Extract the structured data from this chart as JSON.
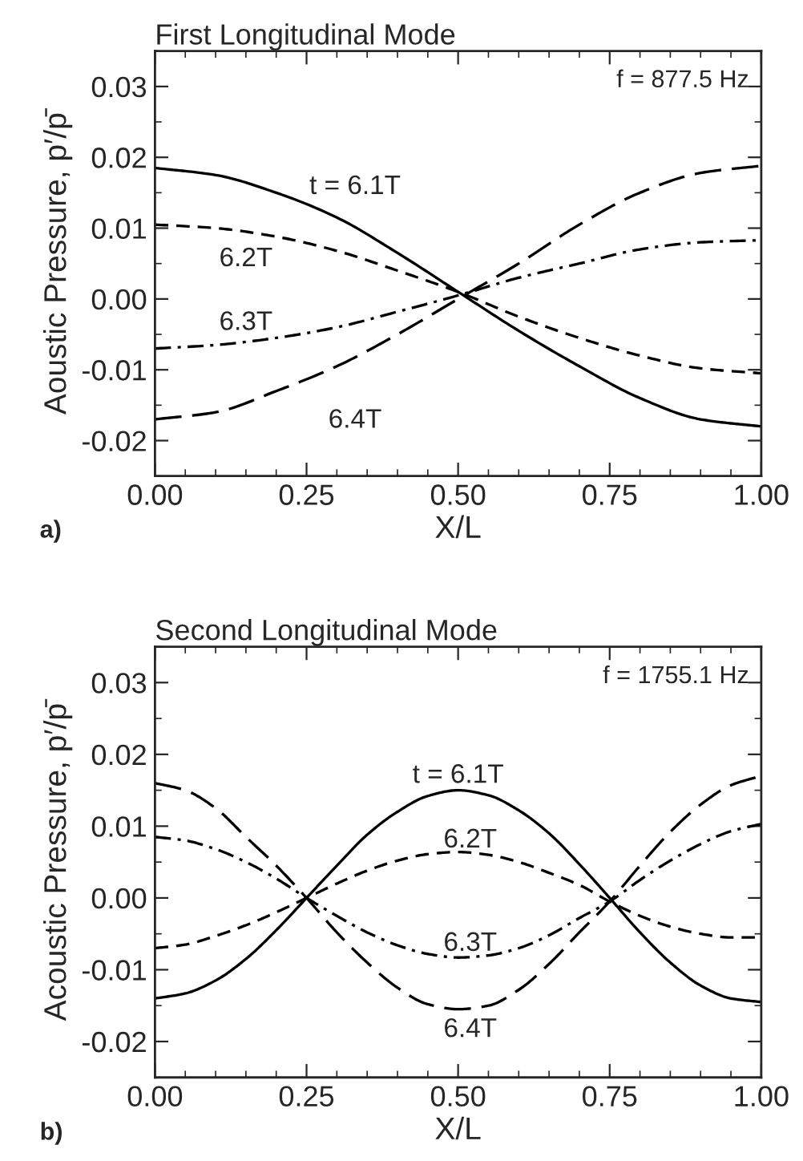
{
  "chart_data": [
    {
      "type": "line",
      "title": "First Longitudinal Mode",
      "xlabel": "X/L",
      "ylabel": "Aoustic Pressure, p′/p̄",
      "xlim": [
        0,
        1
      ],
      "ylim": [
        -0.025,
        0.035
      ],
      "xticks": [
        {
          "value": 0,
          "label": "0.00"
        },
        {
          "value": 0.25,
          "label": "0.25"
        },
        {
          "value": 0.5,
          "label": "0.50"
        },
        {
          "value": 0.75,
          "label": "0.75"
        },
        {
          "value": 1,
          "label": "1.00"
        }
      ],
      "yticks": [
        {
          "value": -0.02,
          "label": "-0.02"
        },
        {
          "value": -0.01,
          "label": "-0.01"
        },
        {
          "value": 0,
          "label": "0.00"
        },
        {
          "value": 0.01,
          "label": "0.01"
        },
        {
          "value": 0.02,
          "label": "0.02"
        },
        {
          "value": 0.03,
          "label": "0.03"
        }
      ],
      "x": [
        0,
        0.1,
        0.2,
        0.3,
        0.4,
        0.5,
        0.6,
        0.7,
        0.8,
        0.9,
        1.0
      ],
      "series": [
        {
          "name": "t = 6.1T",
          "color": "#000000",
          "line_style": "solid",
          "values": [
            0.0185,
            0.0175,
            0.015,
            0.0115,
            0.0065,
            0.001,
            -0.0045,
            -0.0095,
            -0.014,
            -0.017,
            -0.018
          ]
        },
        {
          "name": "6.2T",
          "color": "#000000",
          "line_style": "dashed",
          "values": [
            0.0105,
            0.01,
            0.0088,
            0.0068,
            0.004,
            0.001,
            -0.0025,
            -0.0055,
            -0.008,
            -0.0098,
            -0.0105
          ]
        },
        {
          "name": "6.3T",
          "color": "#000000",
          "line_style": "dashdot",
          "values": [
            -0.007,
            -0.0065,
            -0.0055,
            -0.004,
            -0.0018,
            0.0005,
            0.003,
            0.005,
            0.007,
            0.008,
            0.0083
          ]
        },
        {
          "name": "6.4T",
          "color": "#000000",
          "line_style": "longdash",
          "values": [
            -0.017,
            -0.016,
            -0.013,
            -0.0095,
            -0.005,
            0.0,
            0.005,
            0.0105,
            0.015,
            0.0178,
            0.0188
          ]
        }
      ],
      "annotations": [
        "f = 877.5 Hz",
        "a)"
      ]
    },
    {
      "type": "line",
      "title": "Second Longitudinal Mode",
      "xlabel": "X/L",
      "ylabel": "Acoustic Pressure, p′/p̄",
      "xlim": [
        0,
        1
      ],
      "ylim": [
        -0.025,
        0.035
      ],
      "xticks": [
        {
          "value": 0,
          "label": "0.00"
        },
        {
          "value": 0.25,
          "label": "0.25"
        },
        {
          "value": 0.5,
          "label": "0.50"
        },
        {
          "value": 0.75,
          "label": "0.75"
        },
        {
          "value": 1,
          "label": "1.00"
        }
      ],
      "yticks": [
        {
          "value": -0.02,
          "label": "-0.02"
        },
        {
          "value": -0.01,
          "label": "-0.01"
        },
        {
          "value": 0,
          "label": "0.00"
        },
        {
          "value": 0.01,
          "label": "0.01"
        },
        {
          "value": 0.02,
          "label": "0.02"
        },
        {
          "value": 0.03,
          "label": "0.03"
        }
      ],
      "x": [
        0,
        0.05,
        0.1,
        0.15,
        0.2,
        0.25,
        0.3,
        0.35,
        0.4,
        0.45,
        0.5,
        0.55,
        0.6,
        0.65,
        0.7,
        0.75,
        0.8,
        0.85,
        0.9,
        0.95,
        1.0
      ],
      "series": [
        {
          "name": "t = 6.1T",
          "color": "#000000",
          "line_style": "solid",
          "values": [
            -0.014,
            -0.0133,
            -0.0115,
            -0.0085,
            -0.0045,
            0.0,
            0.0045,
            0.0088,
            0.012,
            0.0142,
            0.015,
            0.0143,
            0.0122,
            0.009,
            0.0047,
            0.0,
            -0.0048,
            -0.009,
            -0.0122,
            -0.014,
            -0.0145
          ]
        },
        {
          "name": "6.2T",
          "color": "#000000",
          "line_style": "dashed",
          "values": [
            -0.007,
            -0.0065,
            -0.0053,
            -0.0038,
            -0.002,
            0.0,
            0.002,
            0.0038,
            0.0052,
            0.0061,
            0.0064,
            0.006,
            0.005,
            0.0035,
            0.0018,
            -0.0005,
            -0.0025,
            -0.004,
            -0.005,
            -0.0055,
            -0.0055
          ]
        },
        {
          "name": "6.3T",
          "color": "#000000",
          "line_style": "dashdot",
          "values": [
            0.0085,
            0.008,
            0.0068,
            0.005,
            0.0027,
            0.0,
            -0.0025,
            -0.0048,
            -0.0066,
            -0.0078,
            -0.0083,
            -0.008,
            -0.007,
            -0.0052,
            -0.0028,
            -0.0005,
            0.0025,
            0.0052,
            0.0075,
            0.0093,
            0.0103
          ]
        },
        {
          "name": "6.4T",
          "color": "#000000",
          "line_style": "longdash",
          "values": [
            0.016,
            0.015,
            0.0125,
            0.0085,
            0.0045,
            0.0,
            -0.0048,
            -0.009,
            -0.0125,
            -0.0148,
            -0.0155,
            -0.015,
            -0.0128,
            -0.0092,
            -0.0048,
            -0.0005,
            0.0045,
            0.0092,
            0.013,
            0.0157,
            0.017
          ]
        }
      ],
      "annotations": [
        "f = 1755.1 Hz",
        "b)"
      ]
    }
  ]
}
